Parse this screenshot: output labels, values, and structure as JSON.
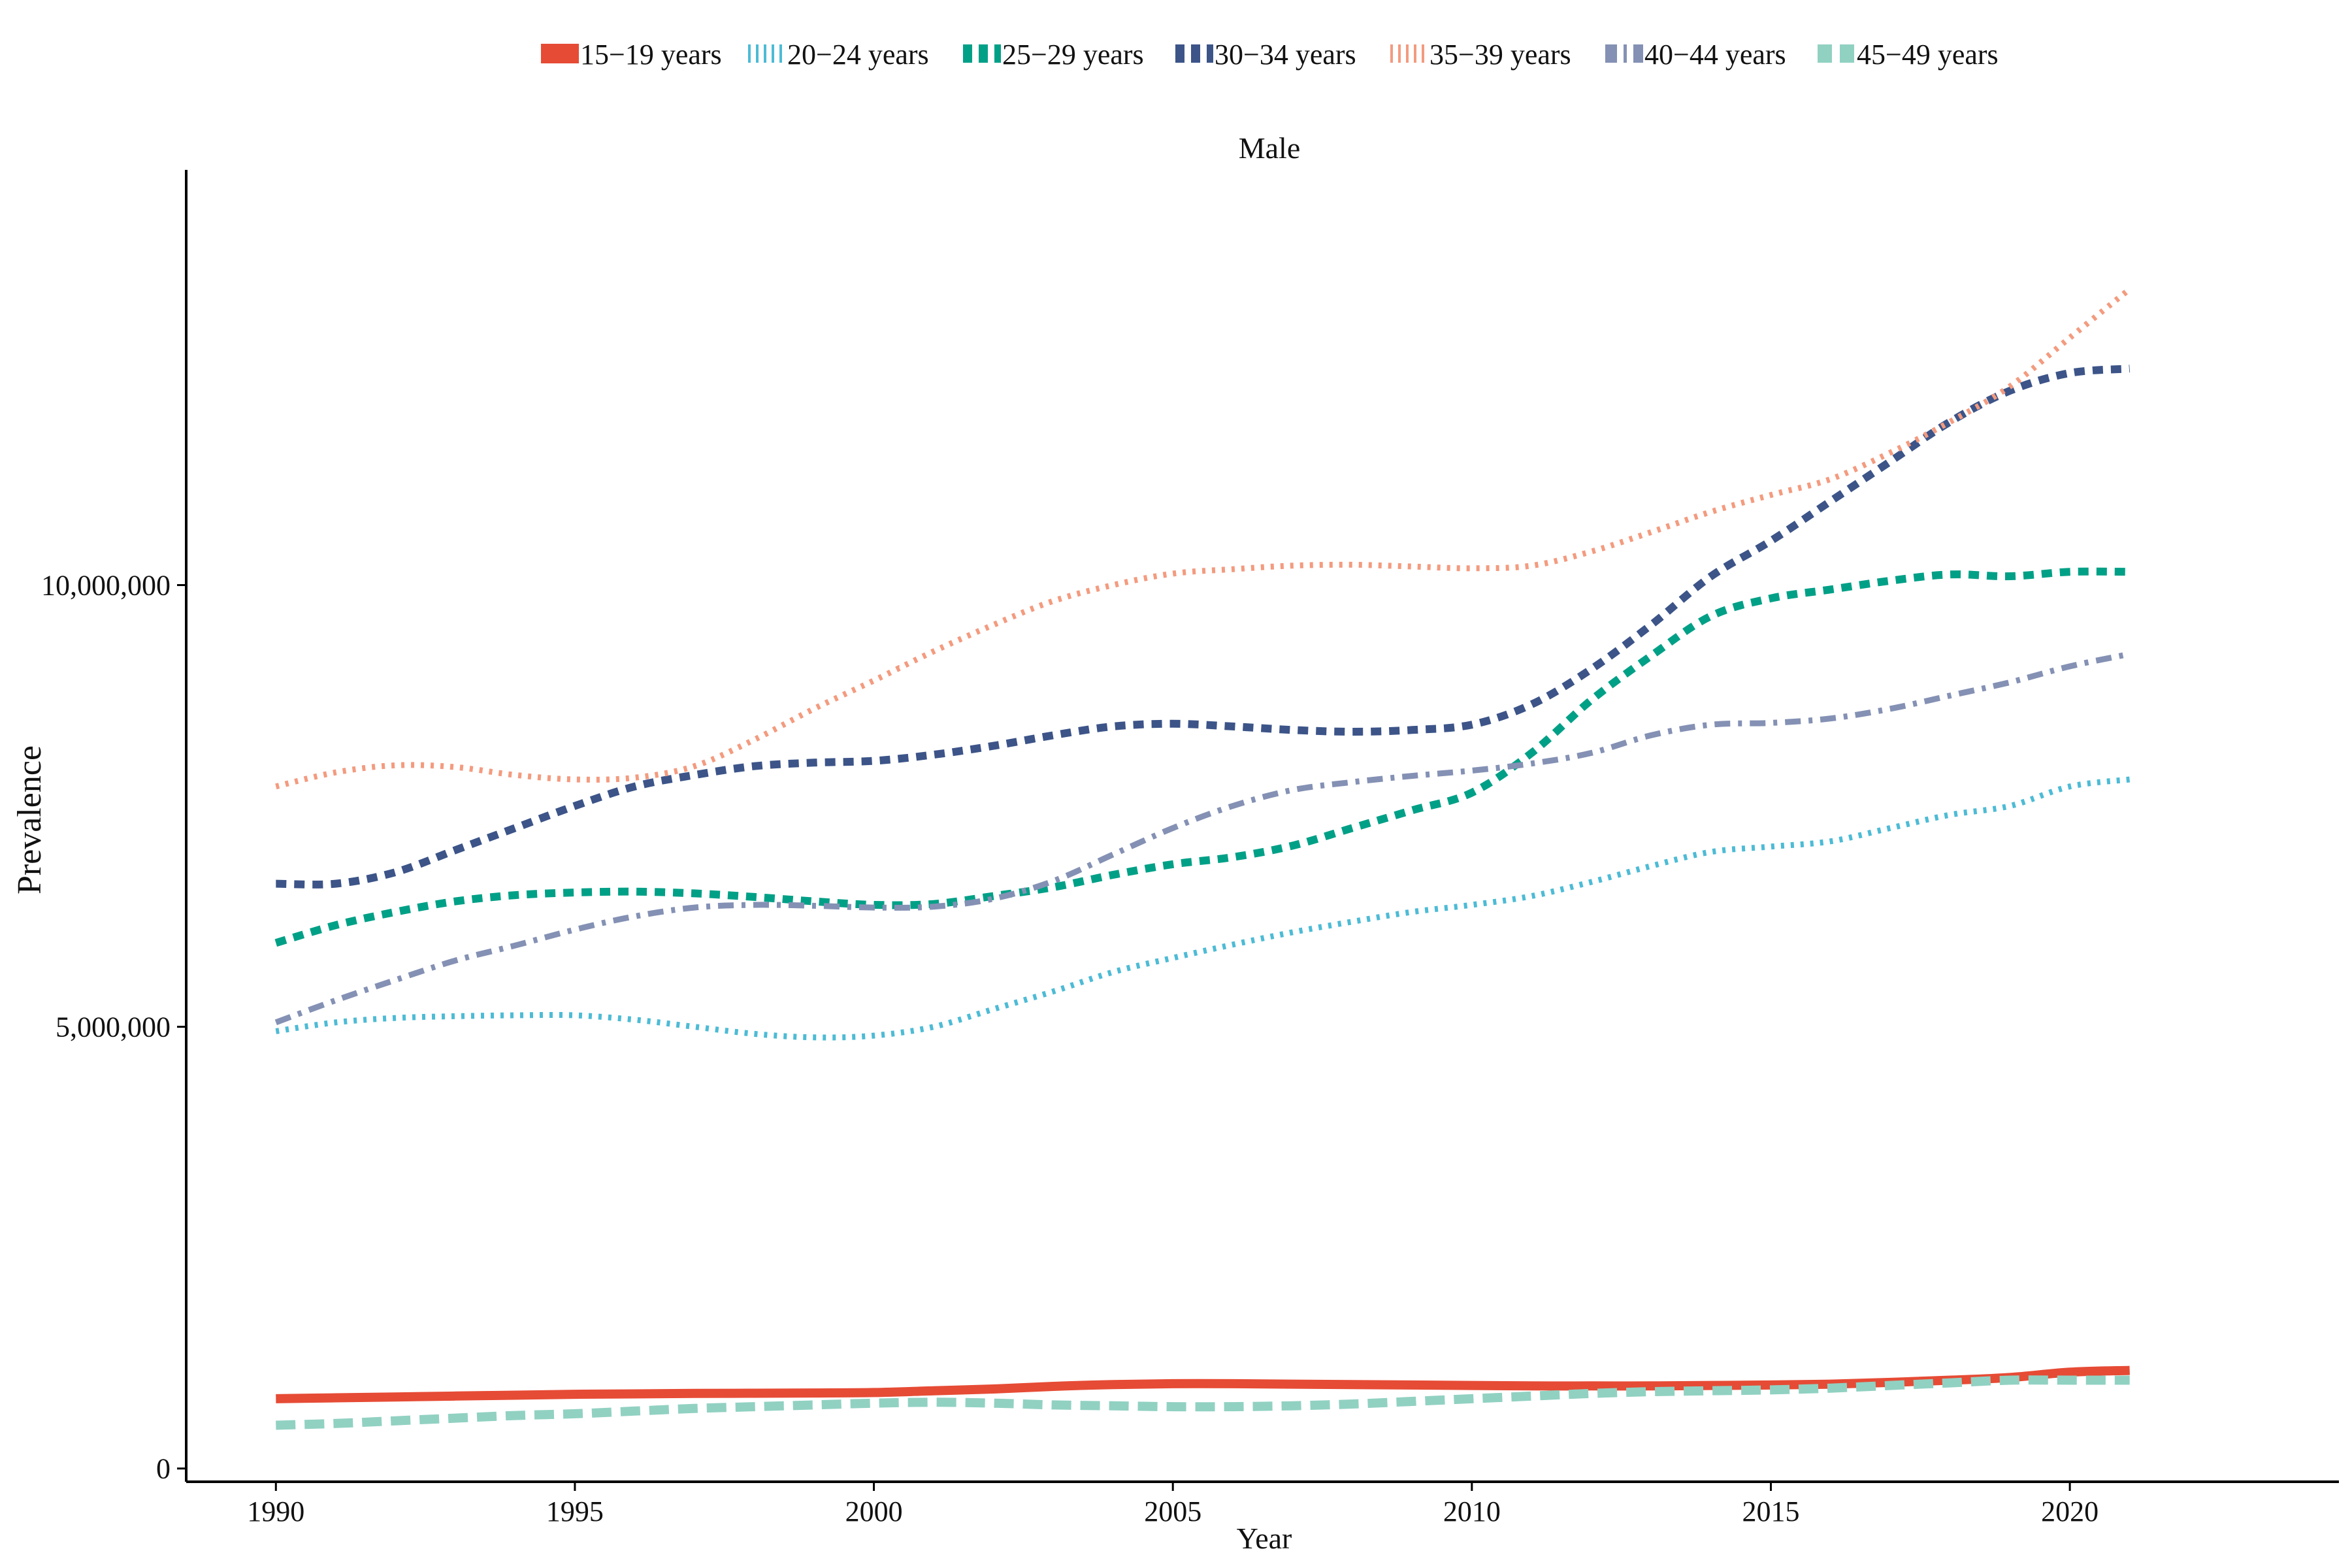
{
  "chart_data": {
    "type": "line",
    "title": "Male",
    "xlabel": "Year",
    "ylabel": "Prevalence",
    "xlim": [
      1988.5,
      2024.5
    ],
    "ylim": [
      -150000,
      14700000
    ],
    "x_ticks": [
      1990,
      1995,
      2000,
      2005,
      2010,
      2015,
      2020
    ],
    "x_tick_labels": [
      "1990",
      "1995",
      "2000",
      "2005",
      "2010",
      "2015",
      "2020"
    ],
    "y_ticks": [
      0,
      5000000,
      10000000
    ],
    "y_tick_labels": [
      "0",
      "5,000,000",
      "10,000,000"
    ],
    "grid": false,
    "legend_position": "top",
    "x": [
      1990,
      1991,
      1992,
      1993,
      1994,
      1995,
      1996,
      1997,
      1998,
      1999,
      2000,
      2001,
      2002,
      2003,
      2004,
      2005,
      2006,
      2007,
      2008,
      2009,
      2010,
      2011,
      2012,
      2013,
      2014,
      2015,
      2016,
      2017,
      2018,
      2019,
      2020,
      2021
    ],
    "series": [
      {
        "name": "15−19 years",
        "color": "#E64B35",
        "dash": "solid",
        "values": [
          790000,
          800000,
          810000,
          820000,
          830000,
          840000,
          845000,
          850000,
          852000,
          855000,
          860000,
          880000,
          900000,
          930000,
          950000,
          960000,
          960000,
          955000,
          950000,
          945000,
          940000,
          935000,
          935000,
          935000,
          940000,
          945000,
          955000,
          975000,
          1000000,
          1030000,
          1090000,
          1110000
        ]
      },
      {
        "name": "20−24 years",
        "color": "#4DBBD5",
        "dash": "dotted",
        "values": [
          4950000,
          5050000,
          5100000,
          5120000,
          5130000,
          5130000,
          5080000,
          5000000,
          4920000,
          4880000,
          4900000,
          5000000,
          5200000,
          5400000,
          5620000,
          5780000,
          5930000,
          6070000,
          6190000,
          6300000,
          6380000,
          6480000,
          6640000,
          6820000,
          6980000,
          7040000,
          7100000,
          7250000,
          7400000,
          7500000,
          7720000,
          7800000
        ]
      },
      {
        "name": "25−29 years",
        "color": "#00A087",
        "dash": "dashed",
        "values": [
          5950000,
          6150000,
          6300000,
          6420000,
          6490000,
          6520000,
          6530000,
          6510000,
          6470000,
          6420000,
          6380000,
          6390000,
          6480000,
          6580000,
          6720000,
          6840000,
          6920000,
          7050000,
          7250000,
          7450000,
          7650000,
          8100000,
          8700000,
          9200000,
          9650000,
          9850000,
          9950000,
          10050000,
          10120000,
          10100000,
          10150000,
          10150000
        ]
      },
      {
        "name": "30−34 years",
        "color": "#3C5488",
        "dash": "dashed",
        "values": [
          6620000,
          6620000,
          6750000,
          7000000,
          7250000,
          7500000,
          7720000,
          7850000,
          7950000,
          7990000,
          8010000,
          8080000,
          8180000,
          8300000,
          8400000,
          8430000,
          8400000,
          8360000,
          8340000,
          8360000,
          8420000,
          8650000,
          9050000,
          9550000,
          10100000,
          10500000,
          10950000,
          11400000,
          11850000,
          12200000,
          12400000,
          12450000
        ]
      },
      {
        "name": "35−39 years",
        "color": "#F39B7F",
        "dash": "dotted",
        "values": [
          7720000,
          7880000,
          7960000,
          7940000,
          7850000,
          7800000,
          7820000,
          7950000,
          8250000,
          8600000,
          8920000,
          9250000,
          9550000,
          9820000,
          10000000,
          10130000,
          10180000,
          10220000,
          10230000,
          10210000,
          10190000,
          10220000,
          10380000,
          10600000,
          10830000,
          11020000,
          11200000,
          11500000,
          11850000,
          12250000,
          12800000,
          13350000
        ]
      },
      {
        "name": "40−44 years",
        "color": "#8491B4",
        "dash": "dashdot",
        "values": [
          5050000,
          5300000,
          5530000,
          5750000,
          5920000,
          6100000,
          6250000,
          6350000,
          6380000,
          6370000,
          6350000,
          6360000,
          6450000,
          6650000,
          6950000,
          7250000,
          7500000,
          7680000,
          7770000,
          7840000,
          7900000,
          7980000,
          8100000,
          8300000,
          8420000,
          8440000,
          8490000,
          8600000,
          8750000,
          8900000,
          9080000,
          9220000
        ]
      },
      {
        "name": "45−49 years",
        "color": "#91D1C2",
        "dash": "longdash",
        "values": [
          490000,
          510000,
          540000,
          570000,
          600000,
          620000,
          650000,
          680000,
          700000,
          720000,
          740000,
          750000,
          740000,
          720000,
          710000,
          700000,
          700000,
          710000,
          730000,
          760000,
          790000,
          820000,
          850000,
          870000,
          880000,
          890000,
          910000,
          940000,
          970000,
          1000000,
          1000000,
          1000000
        ]
      }
    ]
  }
}
